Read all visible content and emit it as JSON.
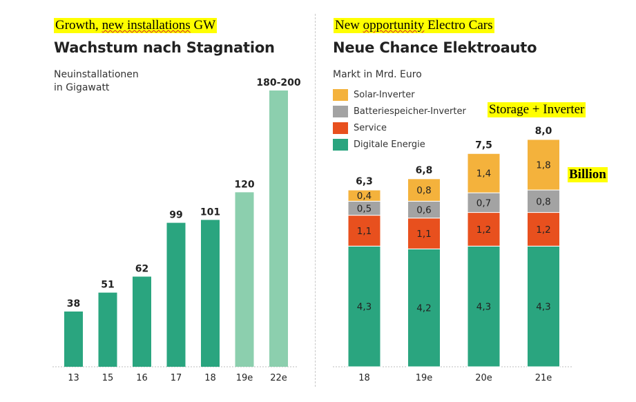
{
  "annotations": {
    "left": {
      "plain": "Growth, ",
      "underlined": "new installations",
      "rest": " GW"
    },
    "right": {
      "plain": "New ",
      "underlined": "opportunity",
      "rest": " Electro Cars"
    },
    "storage": "Storage + Inverter",
    "billion": "Billion"
  },
  "left_panel": {
    "title": "Wachstum nach Stagnation",
    "subtitle": "Neuinstallationen\nin Gigawatt"
  },
  "right_panel": {
    "title": "Neue Chance Elektroauto",
    "subtitle": "Markt in Mrd. Euro"
  },
  "colors": {
    "digitale": "#2aa57f",
    "service": "#e8501e",
    "batterie": "#a3a3a3",
    "solar": "#f4b23c",
    "bar_actual": "#2aa57f",
    "bar_forecast": "#8ccfae",
    "axis": "#bbbbbb",
    "text": "#222222"
  },
  "chart_data": [
    {
      "type": "bar",
      "title": "Wachstum nach Stagnation",
      "ylabel": "Neuinstallationen in Gigawatt",
      "categories": [
        "13",
        "15",
        "16",
        "17",
        "18",
        "19e",
        "22e"
      ],
      "values": [
        38,
        51,
        62,
        99,
        101,
        120,
        190
      ],
      "value_labels": [
        "38",
        "51",
        "62",
        "99",
        "101",
        "120",
        "180-200"
      ],
      "forecast": [
        false,
        false,
        false,
        false,
        false,
        true,
        true
      ],
      "ylim": [
        0,
        200
      ],
      "grid": false
    },
    {
      "type": "bar",
      "stacked": true,
      "title": "Neue Chance Elektroauto",
      "ylabel": "Markt in Mrd. Euro",
      "categories": [
        "18",
        "19e",
        "20e",
        "21e"
      ],
      "series": [
        {
          "name": "Digitale Energie",
          "color_key": "digitale",
          "values": [
            4.3,
            4.2,
            4.3,
            4.3
          ],
          "labels": [
            "4,3",
            "4,2",
            "4,3",
            "4,3"
          ]
        },
        {
          "name": "Service",
          "color_key": "service",
          "values": [
            1.1,
            1.1,
            1.2,
            1.2
          ],
          "labels": [
            "1,1",
            "1,1",
            "1,2",
            "1,2"
          ]
        },
        {
          "name": "Batteriespeicher-Inverter",
          "color_key": "batterie",
          "values": [
            0.5,
            0.6,
            0.7,
            0.8
          ],
          "labels": [
            "0,5",
            "0,6",
            "0,7",
            "0,8"
          ]
        },
        {
          "name": "Solar-Inverter",
          "color_key": "solar",
          "values": [
            0.4,
            0.8,
            1.4,
            1.8
          ],
          "labels": [
            "0,4",
            "0,8",
            "1,4",
            "1,8"
          ]
        }
      ],
      "totals": [
        "6,3",
        "6,8",
        "7,5",
        "8,0"
      ],
      "legend_order": [
        3,
        2,
        1,
        0
      ],
      "legend_position": "top-left",
      "ylim": [
        0,
        8
      ],
      "grid": false
    }
  ]
}
